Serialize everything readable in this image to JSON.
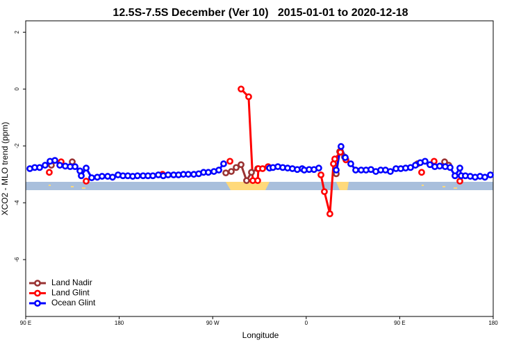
{
  "chart_data": {
    "type": "line",
    "title": "12.5S-7.5S December (Ver 10)   2015-01-01 to 2020-12-18",
    "x_label": "Longitude",
    "y_label": "XCO2 - MLO trend (ppm)",
    "xlim": [
      90,
      540
    ],
    "ylim": [
      -8,
      2.4
    ],
    "xticks": [
      {
        "value": 90,
        "label": "90 E"
      },
      {
        "value": 180,
        "label": "180"
      },
      {
        "value": 270,
        "label": "90 W"
      },
      {
        "value": 360,
        "label": "0"
      },
      {
        "value": 450,
        "label": "90 E"
      },
      {
        "value": 540,
        "label": "180"
      }
    ],
    "yticks": [
      2,
      0,
      -2,
      -4,
      -6
    ],
    "legend": "bottom-left",
    "series": [
      {
        "name": "Land Nadir",
        "color": "#993333",
        "x": [
          114.7,
          null,
          134.8,
          null,
          282.6,
          287.9,
          292.6,
          297.3,
          302.6,
          307.3,
          313.3,
          null,
          388.9,
          392.2,
          396.9,
          null,
          467.1,
          null,
          493.2,
          497.2
        ],
        "values": [
          -2.68,
          null,
          -2.56,
          null,
          -2.95,
          -2.9,
          -2.76,
          -2.66,
          -3.22,
          -2.93,
          -2.8,
          null,
          -2.98,
          -2.2,
          -2.39,
          null,
          -2.63,
          null,
          -2.56,
          -2.68
        ]
      },
      {
        "name": "Land Glint",
        "color": "#ff0000",
        "x": [
          112.7,
          null,
          124.1,
          null,
          148.2,
          null,
          221.7,
          null,
          286.6,
          null,
          297.3,
          304.6,
          308.6,
          313.3,
          314.0,
          318.0,
          323.3,
          null,
          374.2,
          377.5,
          382.8,
          386.2,
          387.5,
          392.9,
          398.2,
          null,
          471.1,
          null,
          483.1,
          null,
          507.9
        ],
        "values": [
          -2.93,
          null,
          -2.56,
          null,
          -3.24,
          null,
          -3.0,
          null,
          -2.54,
          null,
          0.0,
          -0.27,
          -3.22,
          -3.22,
          -2.8,
          -2.8,
          -2.73,
          null,
          -3.02,
          -3.61,
          -4.39,
          -2.63,
          -2.46,
          -2.22,
          -2.49,
          null,
          -2.93,
          null,
          -2.54,
          null,
          -3.24
        ]
      },
      {
        "name": "Ocean Glint",
        "color": "#0000ff",
        "x": [
          94.0,
          98.7,
          103.4,
          108.7,
          113.4,
          118.1,
          122.8,
          128.1,
          132.8,
          137.5,
          142.2,
          143.5,
          148.2,
          153.5,
          158.9,
          163.5,
          168.9,
          173.6,
          178.9,
          183.6,
          188.3,
          193.0,
          197.6,
          203.0,
          207.7,
          212.4,
          217.7,
          222.4,
          227.1,
          232.4,
          237.1,
          241.8,
          246.5,
          251.8,
          256.5,
          261.2,
          265.8,
          271.2,
          275.9,
          280.5,
          null,
          324.7,
          328.0,
          332.7,
          337.4,
          342.1,
          346.7,
          351.4,
          356.1,
          358.1,
          362.8,
          367.5,
          372.1,
          null,
          388.9,
          393.5,
          397.6,
          402.9,
          407.6,
          412.9,
          417.6,
          422.3,
          427.0,
          431.7,
          436.3,
          441.0,
          446.4,
          451.0,
          455.7,
          460.4,
          465.1,
          469.8,
          474.4,
          479.1,
          483.8,
          488.5,
          493.8,
          498.5,
          503.2,
          507.9,
          509.2,
          513.2,
          517.9,
          522.6,
          527.3,
          532.0,
          537.3
        ],
        "values": [
          -2.8,
          -2.76,
          -2.76,
          -2.68,
          -2.54,
          -2.51,
          -2.68,
          -2.71,
          -2.73,
          -2.73,
          -2.88,
          -3.05,
          -2.78,
          -3.12,
          -3.1,
          -3.07,
          -3.07,
          -3.1,
          -3.02,
          -3.05,
          -3.05,
          -3.07,
          -3.05,
          -3.05,
          -3.05,
          -3.05,
          -3.02,
          -3.05,
          -3.02,
          -3.02,
          -3.02,
          -3.0,
          -3.0,
          -3.0,
          -2.98,
          -2.93,
          -2.93,
          -2.9,
          -2.85,
          -2.63,
          null,
          -2.78,
          -2.76,
          -2.73,
          -2.76,
          -2.78,
          -2.8,
          -2.83,
          -2.8,
          -2.85,
          -2.83,
          -2.83,
          -2.78,
          null,
          -2.85,
          -2.02,
          -2.41,
          -2.63,
          -2.85,
          -2.85,
          -2.85,
          -2.83,
          -2.9,
          -2.85,
          -2.85,
          -2.9,
          -2.8,
          -2.8,
          -2.78,
          -2.76,
          -2.68,
          -2.59,
          -2.54,
          -2.66,
          -2.73,
          -2.71,
          -2.73,
          -2.76,
          -3.05,
          -2.78,
          -3.05,
          -3.05,
          -3.07,
          -3.1,
          -3.07,
          -3.1,
          -3.02
        ]
      }
    ]
  }
}
